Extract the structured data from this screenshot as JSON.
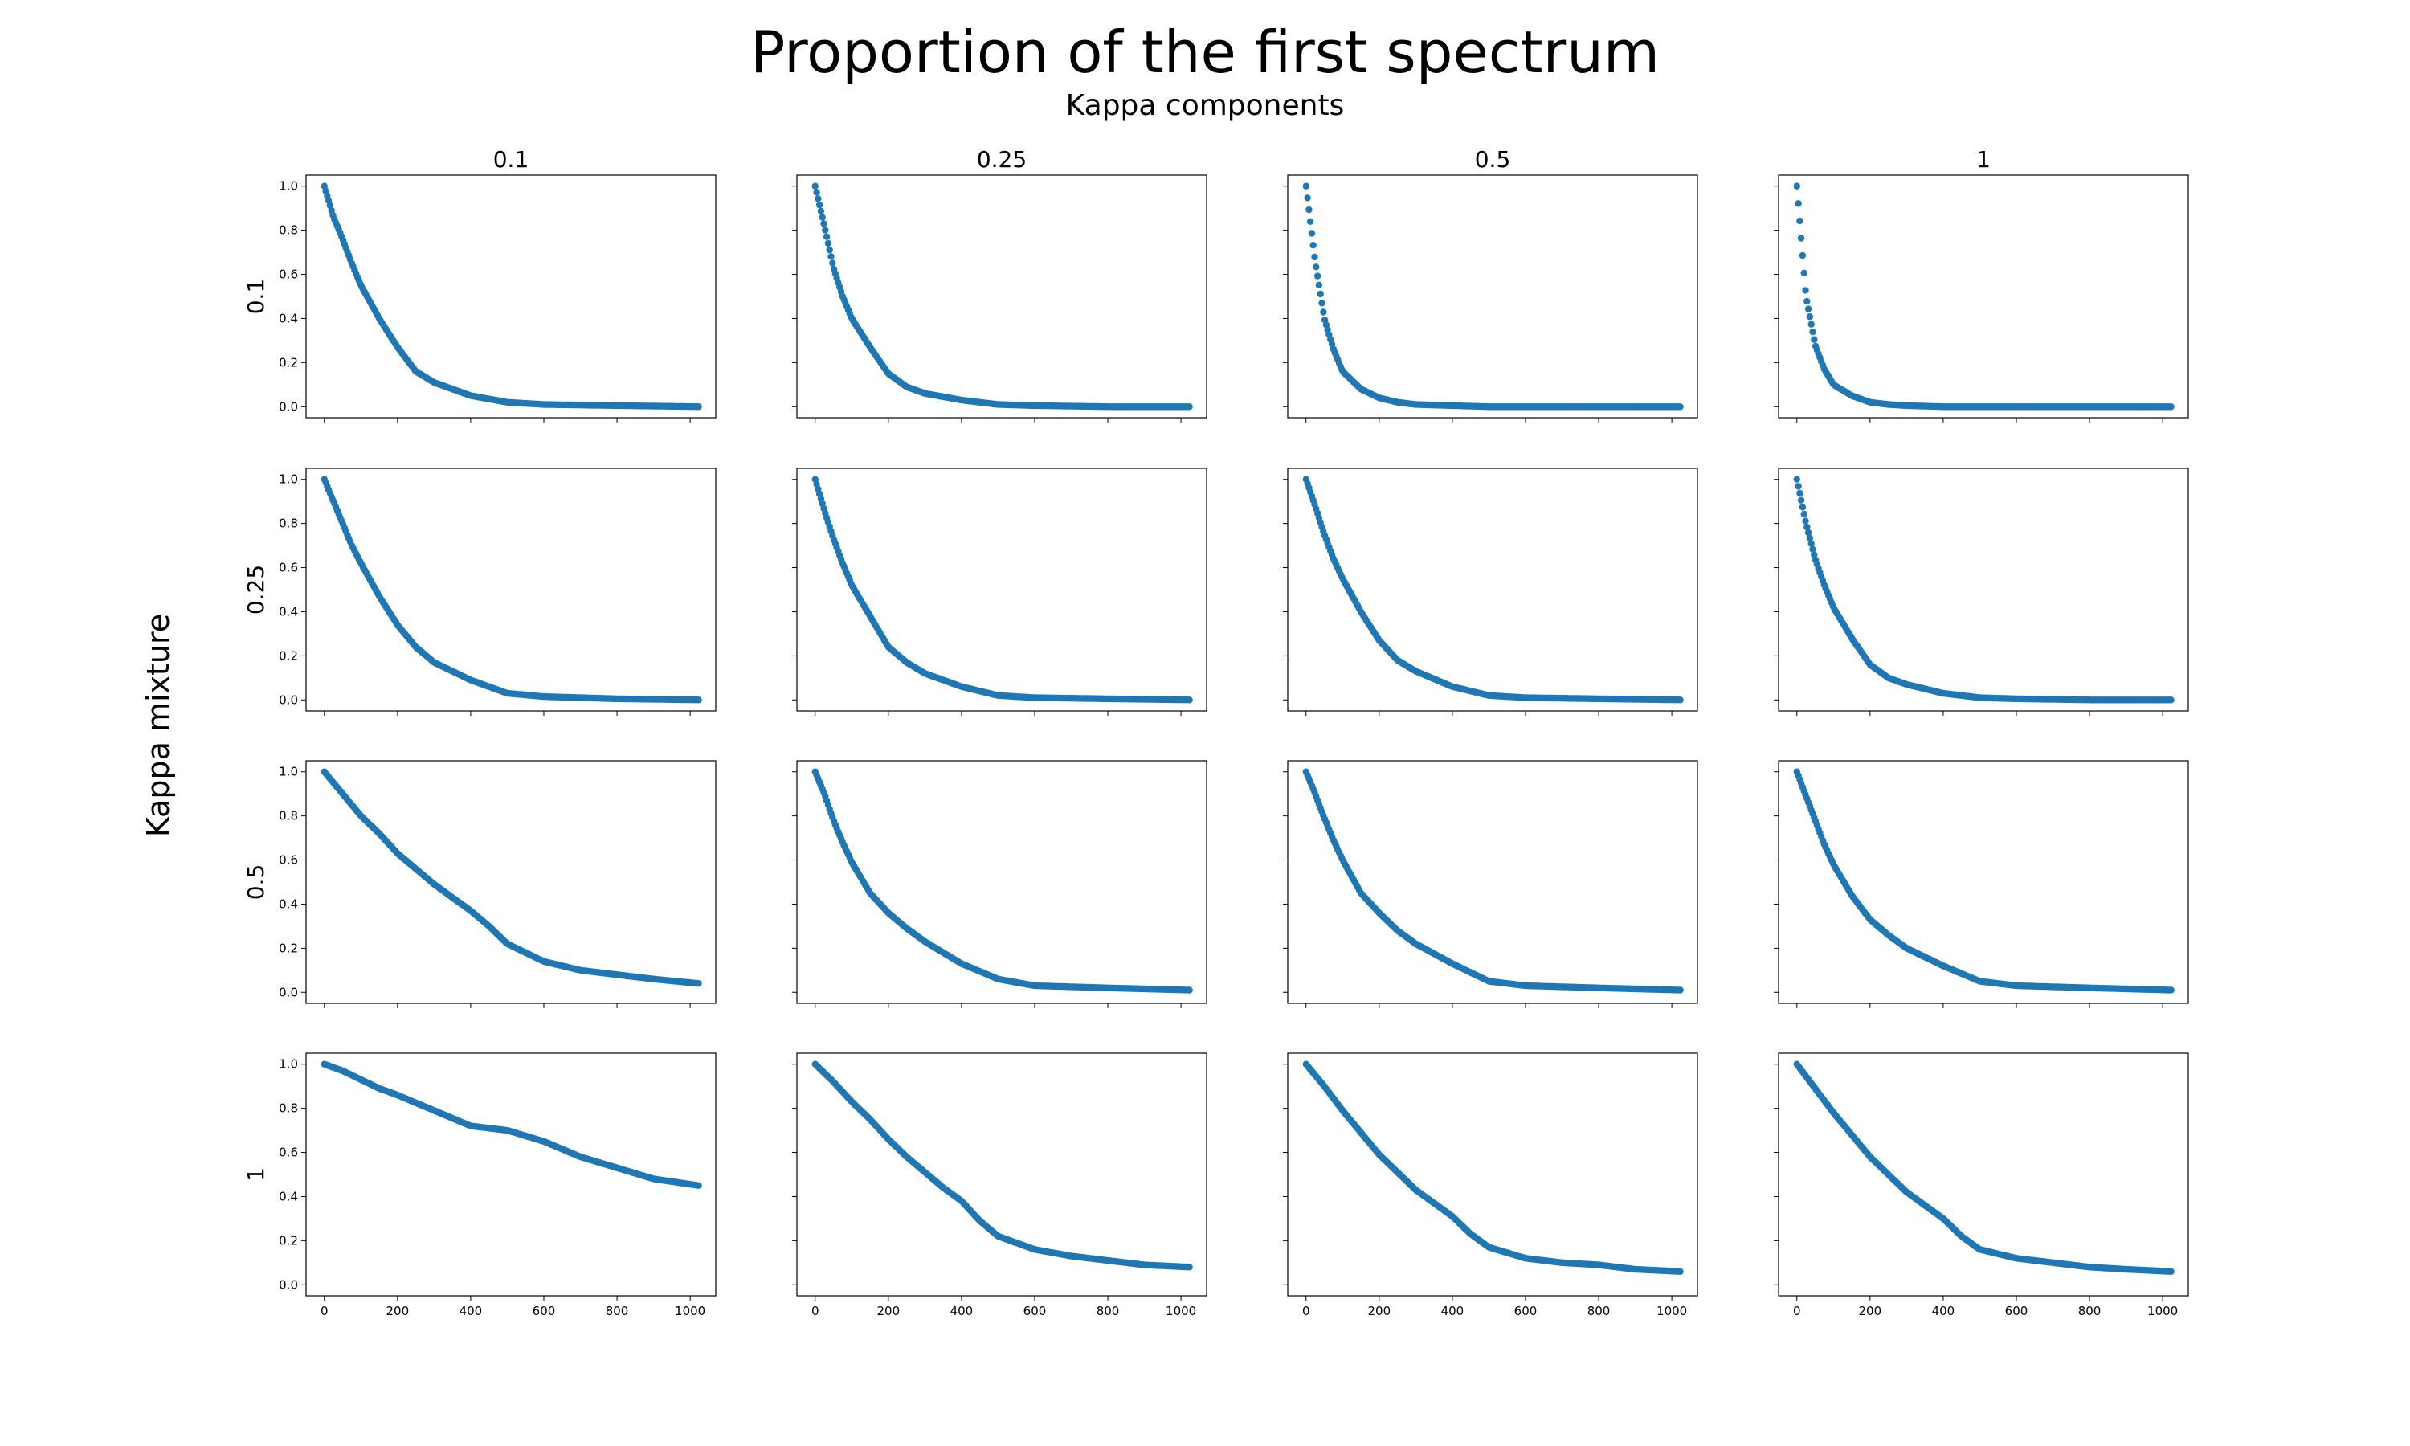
{
  "figure": {
    "title": "Proportion of the first spectrum",
    "subtitle": "Kappa components",
    "row_axis_label": "Kappa mixture"
  },
  "chart_data": {
    "type": "scatter",
    "marker_color": "#1f77b4",
    "column_labels": [
      "0.1",
      "0.25",
      "0.5",
      "1"
    ],
    "row_labels": [
      "0.1",
      "0.25",
      "0.5",
      "1"
    ],
    "xlim": [
      -50,
      1070
    ],
    "ylim": [
      -0.05,
      1.05
    ],
    "x_ticks": [
      0,
      200,
      400,
      600,
      800,
      1000
    ],
    "y_ticks": [
      0.0,
      0.2,
      0.4,
      0.6,
      0.8,
      1.0
    ],
    "x_tick_labels": [
      "0",
      "200",
      "400",
      "600",
      "800",
      "1000"
    ],
    "y_tick_labels": [
      "0.0",
      "0.2",
      "0.4",
      "0.6",
      "0.8",
      "1.0"
    ],
    "x_range": [
      0,
      1023
    ],
    "panels": [
      {
        "row": "0.1",
        "col": "0.1",
        "x": [
          0,
          25,
          50,
          75,
          100,
          150,
          200,
          250,
          300,
          400,
          500,
          600,
          800,
          1023
        ],
        "y": [
          1.0,
          0.86,
          0.76,
          0.65,
          0.55,
          0.4,
          0.27,
          0.16,
          0.11,
          0.05,
          0.02,
          0.01,
          0.005,
          0.0
        ]
      },
      {
        "row": "0.1",
        "col": "0.25",
        "x": [
          0,
          25,
          50,
          75,
          100,
          150,
          200,
          250,
          300,
          400,
          500,
          600,
          800,
          1023
        ],
        "y": [
          1.0,
          0.82,
          0.63,
          0.5,
          0.4,
          0.27,
          0.15,
          0.09,
          0.06,
          0.03,
          0.01,
          0.005,
          0.0,
          0.0
        ]
      },
      {
        "row": "0.1",
        "col": "0.5",
        "x": [
          0,
          25,
          50,
          75,
          100,
          150,
          200,
          250,
          300,
          400,
          500,
          600,
          800,
          1023
        ],
        "y": [
          1.0,
          0.66,
          0.4,
          0.26,
          0.16,
          0.08,
          0.04,
          0.02,
          0.01,
          0.005,
          0.0,
          0.0,
          0.0,
          0.0
        ]
      },
      {
        "row": "0.1",
        "col": "1",
        "x": [
          0,
          25,
          50,
          75,
          100,
          150,
          200,
          250,
          300,
          400,
          500,
          600,
          800,
          1023
        ],
        "y": [
          1.0,
          0.5,
          0.28,
          0.17,
          0.1,
          0.05,
          0.02,
          0.01,
          0.005,
          0.0,
          0.0,
          0.0,
          0.0,
          0.0
        ]
      },
      {
        "row": "0.25",
        "col": "0.1",
        "x": [
          0,
          25,
          50,
          75,
          100,
          150,
          200,
          250,
          300,
          400,
          500,
          600,
          800,
          1023
        ],
        "y": [
          1.0,
          0.9,
          0.8,
          0.7,
          0.62,
          0.47,
          0.34,
          0.24,
          0.17,
          0.09,
          0.03,
          0.015,
          0.005,
          0.0
        ]
      },
      {
        "row": "0.25",
        "col": "0.25",
        "x": [
          0,
          25,
          50,
          75,
          100,
          150,
          200,
          250,
          300,
          400,
          500,
          600,
          800,
          1023
        ],
        "y": [
          1.0,
          0.86,
          0.73,
          0.62,
          0.52,
          0.38,
          0.24,
          0.17,
          0.12,
          0.06,
          0.02,
          0.01,
          0.005,
          0.0
        ]
      },
      {
        "row": "0.25",
        "col": "0.5",
        "x": [
          0,
          25,
          50,
          75,
          100,
          150,
          200,
          250,
          300,
          400,
          500,
          600,
          800,
          1023
        ],
        "y": [
          1.0,
          0.88,
          0.75,
          0.64,
          0.55,
          0.4,
          0.27,
          0.18,
          0.13,
          0.06,
          0.02,
          0.01,
          0.005,
          0.0
        ]
      },
      {
        "row": "0.25",
        "col": "1",
        "x": [
          0,
          25,
          50,
          75,
          100,
          150,
          200,
          250,
          300,
          400,
          500,
          600,
          800,
          1023
        ],
        "y": [
          1.0,
          0.8,
          0.64,
          0.52,
          0.42,
          0.28,
          0.16,
          0.1,
          0.07,
          0.03,
          0.01,
          0.005,
          0.0,
          0.0
        ]
      },
      {
        "row": "0.5",
        "col": "0.1",
        "x": [
          0,
          50,
          100,
          150,
          200,
          250,
          300,
          350,
          400,
          450,
          500,
          600,
          700,
          800,
          900,
          1023
        ],
        "y": [
          1.0,
          0.9,
          0.8,
          0.72,
          0.63,
          0.56,
          0.49,
          0.43,
          0.37,
          0.3,
          0.22,
          0.14,
          0.1,
          0.08,
          0.06,
          0.04
        ]
      },
      {
        "row": "0.5",
        "col": "0.25",
        "x": [
          0,
          25,
          50,
          75,
          100,
          150,
          200,
          250,
          300,
          400,
          500,
          600,
          800,
          1023
        ],
        "y": [
          1.0,
          0.9,
          0.78,
          0.68,
          0.59,
          0.45,
          0.36,
          0.29,
          0.23,
          0.13,
          0.06,
          0.03,
          0.02,
          0.01
        ]
      },
      {
        "row": "0.5",
        "col": "0.5",
        "x": [
          0,
          25,
          50,
          75,
          100,
          150,
          200,
          250,
          300,
          400,
          500,
          600,
          800,
          1023
        ],
        "y": [
          1.0,
          0.9,
          0.79,
          0.69,
          0.6,
          0.45,
          0.36,
          0.28,
          0.22,
          0.13,
          0.05,
          0.03,
          0.02,
          0.01
        ]
      },
      {
        "row": "0.5",
        "col": "1",
        "x": [
          0,
          25,
          50,
          75,
          100,
          150,
          200,
          250,
          300,
          400,
          500,
          600,
          800,
          1023
        ],
        "y": [
          1.0,
          0.89,
          0.78,
          0.67,
          0.58,
          0.44,
          0.33,
          0.26,
          0.2,
          0.12,
          0.05,
          0.03,
          0.02,
          0.01
        ]
      },
      {
        "row": "1",
        "col": "0.1",
        "x": [
          0,
          50,
          100,
          150,
          200,
          300,
          400,
          500,
          600,
          700,
          800,
          900,
          1023
        ],
        "y": [
          1.0,
          0.97,
          0.93,
          0.89,
          0.86,
          0.79,
          0.72,
          0.7,
          0.65,
          0.58,
          0.53,
          0.48,
          0.45
        ]
      },
      {
        "row": "1",
        "col": "0.25",
        "x": [
          0,
          50,
          100,
          150,
          200,
          250,
          300,
          350,
          400,
          450,
          500,
          600,
          700,
          800,
          900,
          1023
        ],
        "y": [
          1.0,
          0.92,
          0.83,
          0.75,
          0.66,
          0.58,
          0.51,
          0.44,
          0.38,
          0.29,
          0.22,
          0.16,
          0.13,
          0.11,
          0.09,
          0.08
        ]
      },
      {
        "row": "1",
        "col": "0.5",
        "x": [
          0,
          50,
          100,
          150,
          200,
          250,
          300,
          350,
          400,
          450,
          500,
          600,
          700,
          800,
          900,
          1023
        ],
        "y": [
          1.0,
          0.9,
          0.79,
          0.69,
          0.59,
          0.51,
          0.43,
          0.37,
          0.31,
          0.23,
          0.17,
          0.12,
          0.1,
          0.09,
          0.07,
          0.06
        ]
      },
      {
        "row": "1",
        "col": "1",
        "x": [
          0,
          50,
          100,
          150,
          200,
          250,
          300,
          350,
          400,
          450,
          500,
          600,
          700,
          800,
          900,
          1023
        ],
        "y": [
          1.0,
          0.89,
          0.78,
          0.68,
          0.58,
          0.5,
          0.42,
          0.36,
          0.3,
          0.22,
          0.16,
          0.12,
          0.1,
          0.08,
          0.07,
          0.06
        ]
      }
    ]
  }
}
